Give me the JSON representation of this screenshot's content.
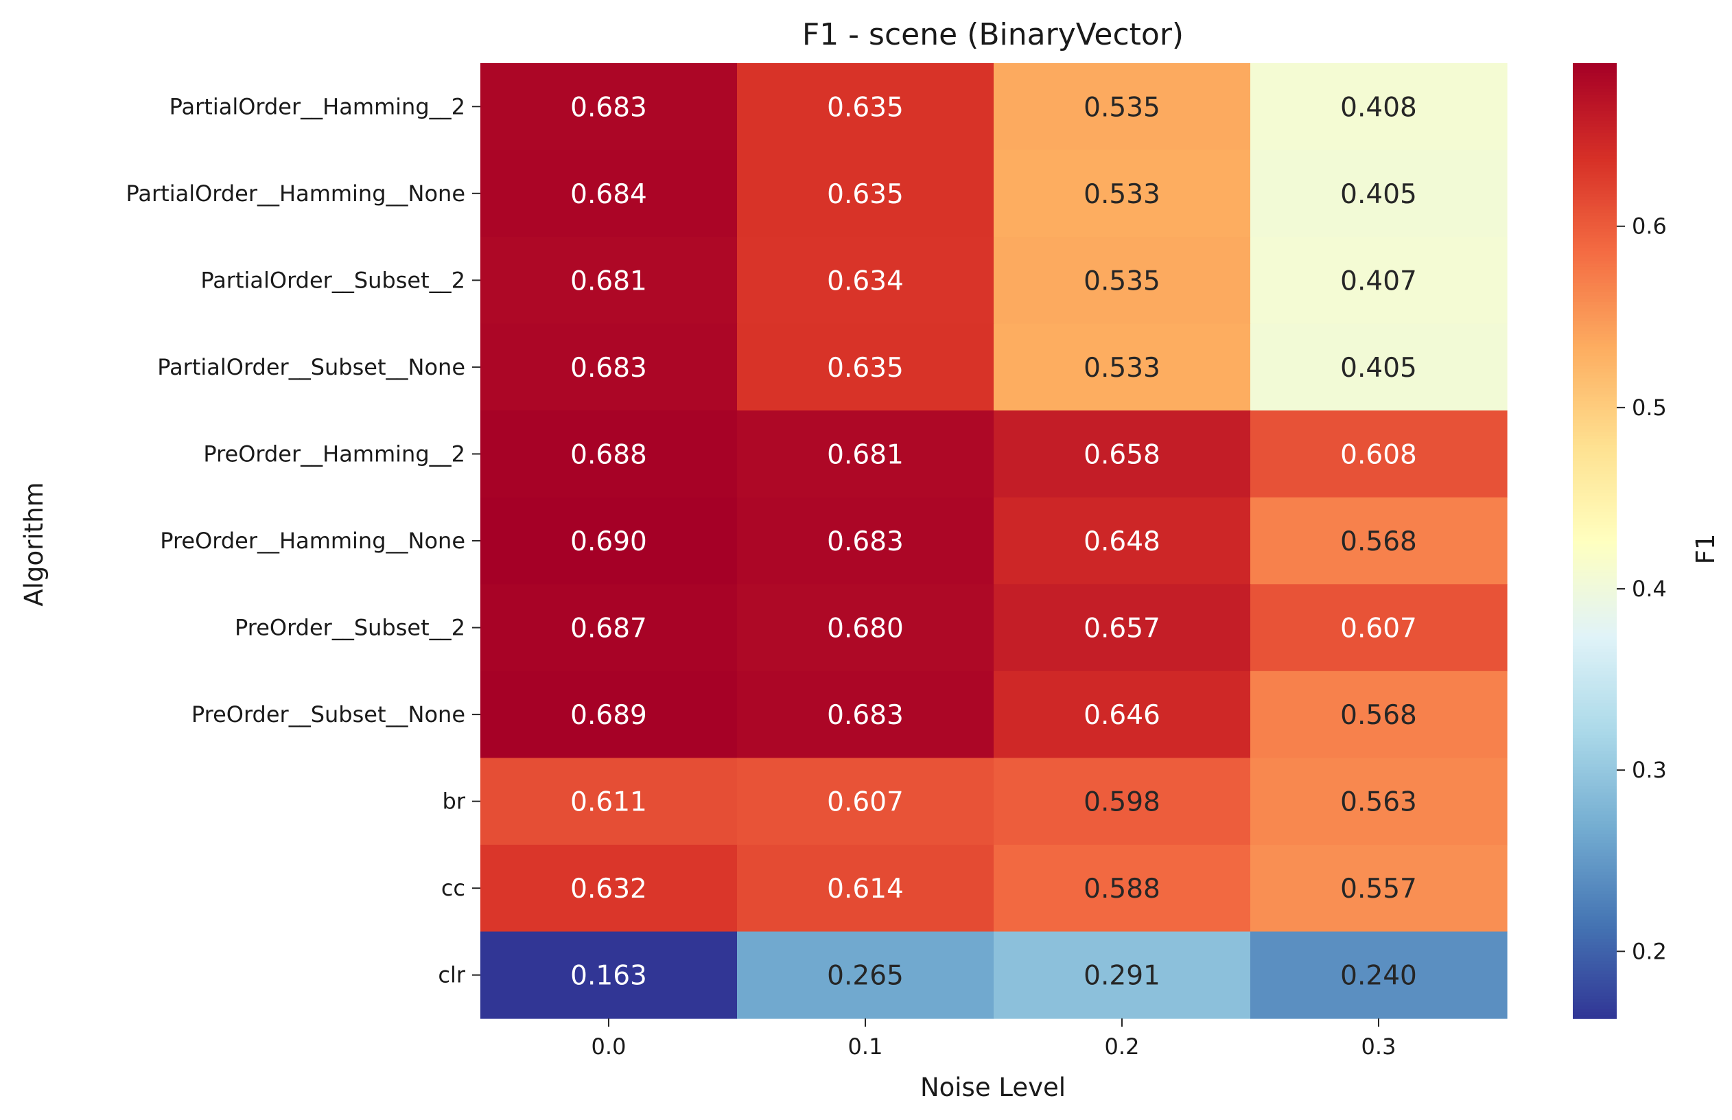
{
  "chart_data": {
    "type": "heatmap",
    "title": "F1 - scene (BinaryVector)",
    "xlabel": "Noise Level",
    "ylabel": "Algorithm",
    "colorbar_label": "F1",
    "colormap": "RdYlBu_r",
    "vmin": 0.163,
    "vmax": 0.69,
    "colorbar_ticks": [
      "0.2",
      "0.3",
      "0.4",
      "0.5",
      "0.6"
    ],
    "x_categories": [
      "0.0",
      "0.1",
      "0.2",
      "0.3"
    ],
    "y_categories": [
      "PartialOrder__Hamming__2",
      "PartialOrder__Hamming__None",
      "PartialOrder__Subset__2",
      "PartialOrder__Subset__None",
      "PreOrder__Hamming__2",
      "PreOrder__Hamming__None",
      "PreOrder__Subset__2",
      "PreOrder__Subset__None",
      "br",
      "cc",
      "clr"
    ],
    "values": [
      [
        0.683,
        0.635,
        0.535,
        0.408
      ],
      [
        0.684,
        0.635,
        0.533,
        0.405
      ],
      [
        0.681,
        0.634,
        0.535,
        0.407
      ],
      [
        0.683,
        0.635,
        0.533,
        0.405
      ],
      [
        0.688,
        0.681,
        0.658,
        0.608
      ],
      [
        0.69,
        0.683,
        0.648,
        0.568
      ],
      [
        0.687,
        0.68,
        0.657,
        0.607
      ],
      [
        0.689,
        0.683,
        0.646,
        0.568
      ],
      [
        0.611,
        0.607,
        0.598,
        0.563
      ],
      [
        0.632,
        0.614,
        0.588,
        0.557
      ],
      [
        0.163,
        0.265,
        0.291,
        0.24
      ]
    ],
    "value_format": "3 decimals"
  }
}
